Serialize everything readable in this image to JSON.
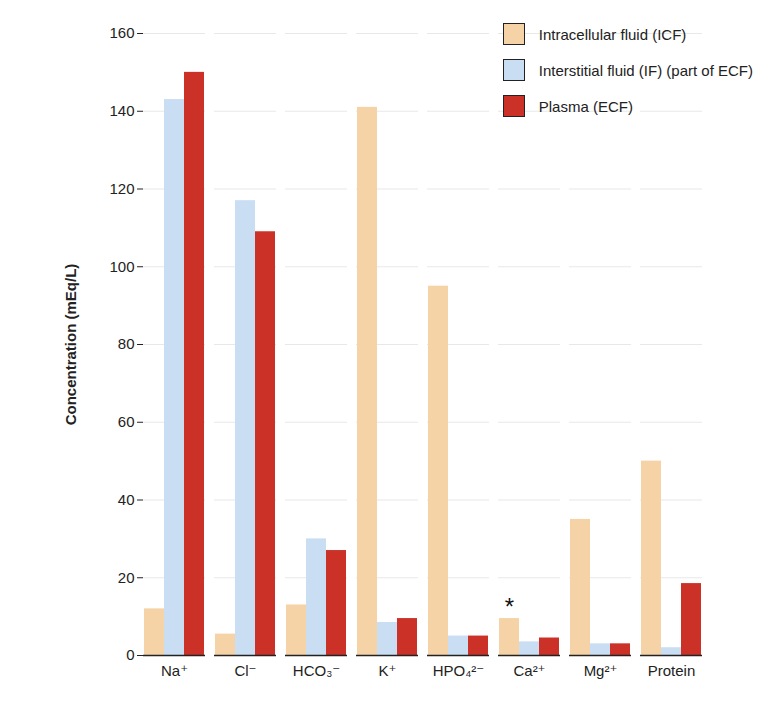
{
  "chart_data": {
    "type": "bar",
    "y_label": "Concentration (mEq/L)",
    "categories": [
      "Na⁺",
      "Cl⁻",
      "HCO₃⁻",
      "K⁺",
      "HPO₄²⁻",
      "Ca²⁺",
      "Mg²⁺",
      "Protein"
    ],
    "series": [
      {
        "name": "Intracellular fluid (ICF)",
        "color": "#f6d3a6",
        "values": [
          12,
          5.5,
          13,
          141,
          95,
          9.5,
          35,
          50
        ]
      },
      {
        "name": "Interstitial fluid (IF) (part of ECF)",
        "color": "#c9def2",
        "values": [
          143,
          117,
          30,
          8.5,
          5,
          3.5,
          3,
          2
        ]
      },
      {
        "name": "Plasma (ECF)",
        "color": "#cc3127",
        "values": [
          150,
          109,
          27,
          9.5,
          5,
          4.5,
          3,
          18.5
        ]
      }
    ],
    "annotations": [
      {
        "text": "*",
        "category": "Ca²⁺",
        "series": "Intracellular fluid (ICF)"
      }
    ],
    "ylim": [
      0,
      160
    ],
    "yticks": [
      0,
      20,
      40,
      60,
      80,
      100,
      120,
      140,
      160
    ],
    "grid": true,
    "legend": "top-right"
  }
}
